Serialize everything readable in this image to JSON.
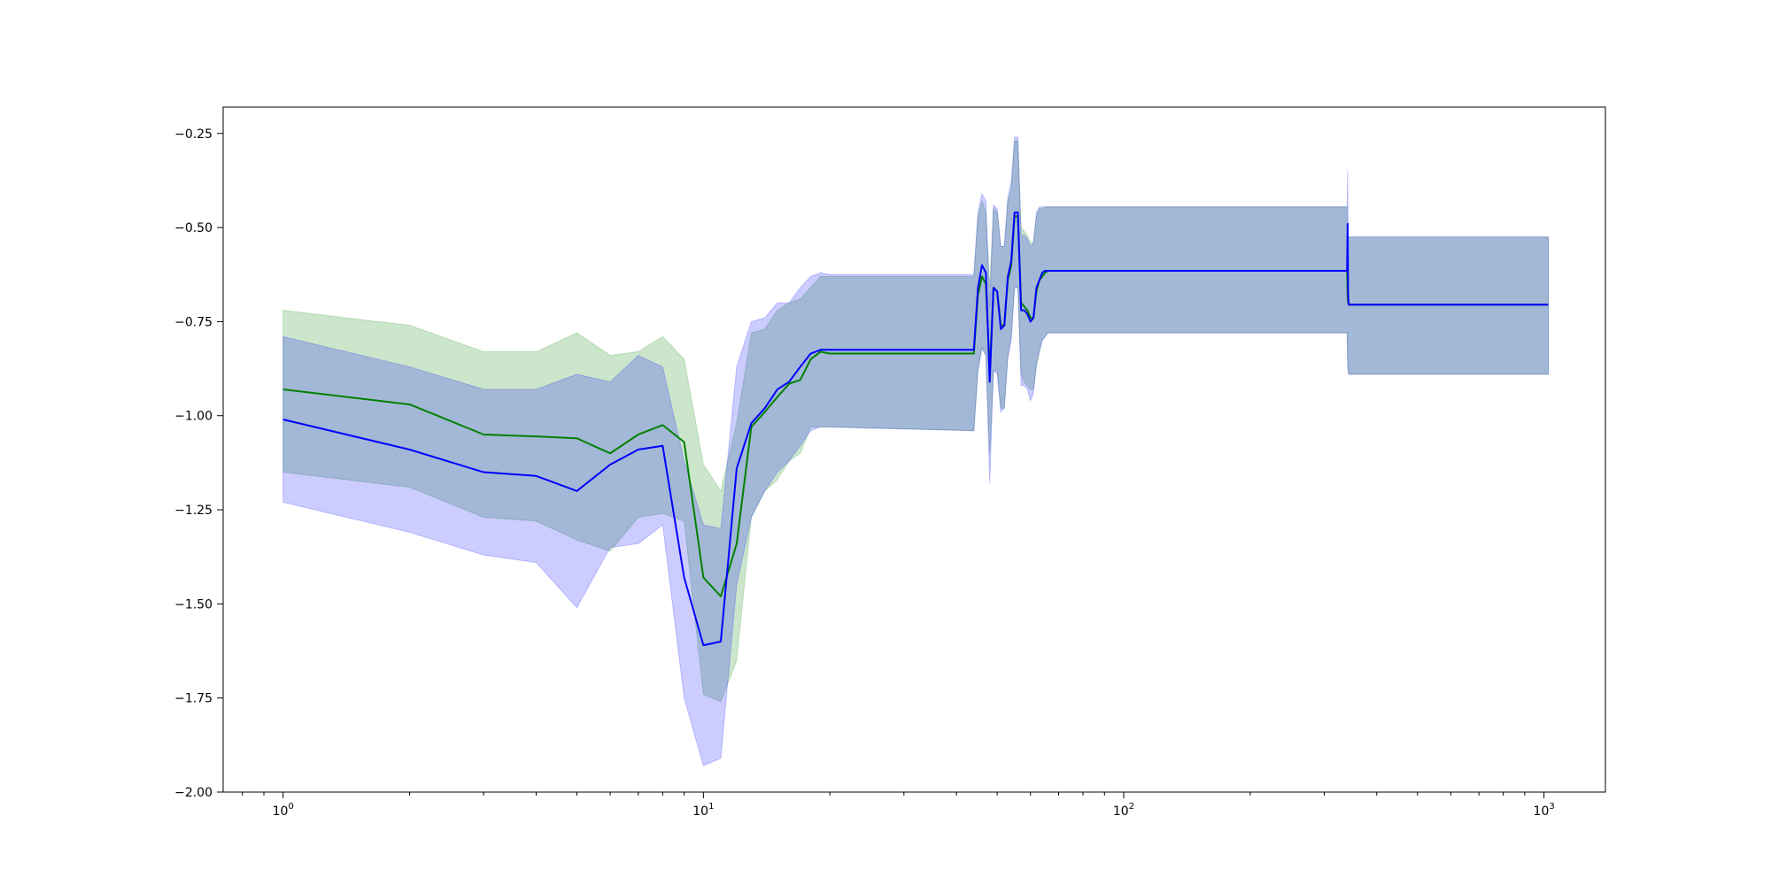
{
  "figure": {
    "background": "#ffffff"
  },
  "chart_data": {
    "type": "line",
    "xscale": "log",
    "xlim": [
      0.72,
      1400
    ],
    "ylim": [
      -2.0,
      -0.18
    ],
    "x_ticks": [
      {
        "value": 1,
        "base": "10",
        "exp": "0"
      },
      {
        "value": 10,
        "base": "10",
        "exp": "1"
      },
      {
        "value": 100,
        "base": "10",
        "exp": "2"
      },
      {
        "value": 1000,
        "base": "10",
        "exp": "3"
      }
    ],
    "y_ticks": [
      {
        "value": -0.25,
        "label": "−0.25"
      },
      {
        "value": -0.5,
        "label": "−0.50"
      },
      {
        "value": -0.75,
        "label": "−0.75"
      },
      {
        "value": -1.0,
        "label": "−1.00"
      },
      {
        "value": -1.25,
        "label": "−1.25"
      },
      {
        "value": -1.5,
        "label": "−1.50"
      },
      {
        "value": -1.75,
        "label": "−1.75"
      },
      {
        "value": -2.0,
        "label": "−2.00"
      }
    ],
    "grid": false,
    "legend": "none",
    "series": [
      {
        "color": "#008000",
        "band_alpha": 0.2,
        "x": [
          1,
          2,
          3,
          4,
          5,
          6,
          7,
          8,
          9,
          10,
          11,
          12,
          13,
          14,
          15,
          16,
          17,
          18,
          19,
          20,
          44,
          45,
          46,
          47,
          48,
          49,
          50,
          51,
          52,
          53,
          54,
          55,
          56,
          57,
          58,
          59,
          60,
          61,
          62,
          63,
          64,
          65,
          66,
          67,
          68,
          340,
          341,
          342,
          343,
          1024
        ],
        "y": [
          -0.93,
          -0.97,
          -1.05,
          -1.055,
          -1.06,
          -1.1,
          -1.05,
          -1.025,
          -1.07,
          -1.43,
          -1.48,
          -1.34,
          -1.03,
          -0.99,
          -0.95,
          -0.915,
          -0.905,
          -0.85,
          -0.83,
          -0.835,
          -0.835,
          -0.68,
          -0.63,
          -0.65,
          -0.88,
          -0.66,
          -0.67,
          -0.76,
          -0.76,
          -0.64,
          -0.6,
          -0.47,
          -0.47,
          -0.7,
          -0.71,
          -0.72,
          -0.74,
          -0.74,
          -0.67,
          -0.64,
          -0.63,
          -0.62,
          -0.615,
          -0.615,
          -0.615,
          -0.615,
          -0.68,
          -0.7,
          -0.705,
          -0.705
        ],
        "y_lower": [
          -1.15,
          -1.19,
          -1.27,
          -1.28,
          -1.33,
          -1.36,
          -1.27,
          -1.26,
          -1.28,
          -1.74,
          -1.76,
          -1.65,
          -1.27,
          -1.2,
          -1.17,
          -1.12,
          -1.1,
          -1.03,
          -1.03,
          -1.03,
          -1.04,
          -0.88,
          -0.82,
          -0.84,
          -1.1,
          -0.88,
          -0.88,
          -0.98,
          -0.98,
          -0.84,
          -0.79,
          -0.66,
          -0.66,
          -0.89,
          -0.91,
          -0.92,
          -0.93,
          -0.93,
          -0.87,
          -0.83,
          -0.8,
          -0.79,
          -0.78,
          -0.78,
          -0.78,
          -0.78,
          -0.85,
          -0.88,
          -0.89,
          -0.89
        ],
        "y_upper": [
          -0.72,
          -0.76,
          -0.83,
          -0.83,
          -0.78,
          -0.84,
          -0.83,
          -0.79,
          -0.85,
          -1.13,
          -1.2,
          -1.02,
          -0.78,
          -0.77,
          -0.72,
          -0.7,
          -0.69,
          -0.66,
          -0.63,
          -0.63,
          -0.63,
          -0.47,
          -0.43,
          -0.46,
          -0.66,
          -0.45,
          -0.46,
          -0.55,
          -0.55,
          -0.43,
          -0.4,
          -0.27,
          -0.27,
          -0.5,
          -0.51,
          -0.52,
          -0.54,
          -0.54,
          -0.47,
          -0.45,
          -0.45,
          -0.445,
          -0.445,
          -0.445,
          -0.445,
          -0.445,
          -0.52,
          -0.525,
          -0.525,
          -0.525
        ]
      },
      {
        "color": "#0000ff",
        "band_alpha": 0.2,
        "x": [
          1,
          2,
          3,
          4,
          5,
          6,
          7,
          8,
          9,
          10,
          11,
          12,
          13,
          14,
          15,
          16,
          17,
          18,
          19,
          20,
          44,
          45,
          46,
          47,
          48,
          49,
          50,
          51,
          52,
          53,
          54,
          55,
          56,
          57,
          58,
          59,
          60,
          61,
          62,
          63,
          64,
          65,
          66,
          67,
          68,
          340,
          341,
          342,
          343,
          1024
        ],
        "y": [
          -1.01,
          -1.09,
          -1.15,
          -1.16,
          -1.2,
          -1.13,
          -1.09,
          -1.08,
          -1.43,
          -1.61,
          -1.6,
          -1.14,
          -1.02,
          -0.98,
          -0.93,
          -0.91,
          -0.87,
          -0.835,
          -0.825,
          -0.825,
          -0.825,
          -0.66,
          -0.6,
          -0.62,
          -0.91,
          -0.66,
          -0.67,
          -0.77,
          -0.76,
          -0.63,
          -0.59,
          -0.46,
          -0.46,
          -0.72,
          -0.72,
          -0.73,
          -0.75,
          -0.74,
          -0.66,
          -0.64,
          -0.62,
          -0.615,
          -0.615,
          -0.615,
          -0.615,
          -0.615,
          -0.49,
          -0.68,
          -0.705,
          -0.705
        ],
        "y_lower": [
          -1.23,
          -1.31,
          -1.37,
          -1.39,
          -1.51,
          -1.35,
          -1.34,
          -1.29,
          -1.75,
          -1.93,
          -1.91,
          -1.45,
          -1.27,
          -1.2,
          -1.15,
          -1.12,
          -1.08,
          -1.04,
          -1.03,
          -1.03,
          -1.04,
          -0.88,
          -0.82,
          -0.84,
          -1.18,
          -0.88,
          -0.89,
          -0.99,
          -0.98,
          -0.85,
          -0.8,
          -0.66,
          -0.66,
          -0.92,
          -0.92,
          -0.93,
          -0.96,
          -0.94,
          -0.86,
          -0.83,
          -0.8,
          -0.79,
          -0.78,
          -0.78,
          -0.78,
          -0.78,
          -0.87,
          -0.88,
          -0.89,
          -0.89
        ],
        "y_upper": [
          -0.79,
          -0.87,
          -0.93,
          -0.93,
          -0.89,
          -0.91,
          -0.84,
          -0.87,
          -1.12,
          -1.29,
          -1.3,
          -0.87,
          -0.75,
          -0.74,
          -0.7,
          -0.7,
          -0.66,
          -0.63,
          -0.62,
          -0.625,
          -0.625,
          -0.46,
          -0.41,
          -0.43,
          -0.71,
          -0.44,
          -0.45,
          -0.55,
          -0.55,
          -0.42,
          -0.38,
          -0.26,
          -0.26,
          -0.52,
          -0.52,
          -0.53,
          -0.55,
          -0.54,
          -0.46,
          -0.445,
          -0.445,
          -0.445,
          -0.445,
          -0.445,
          -0.445,
          -0.445,
          -0.35,
          -0.52,
          -0.525,
          -0.525
        ]
      }
    ]
  }
}
